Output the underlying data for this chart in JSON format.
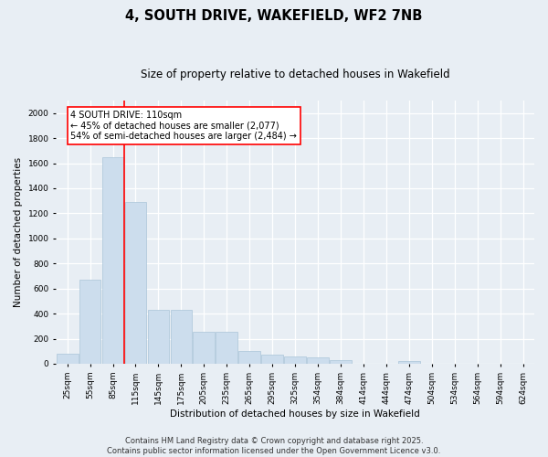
{
  "title": "4, SOUTH DRIVE, WAKEFIELD, WF2 7NB",
  "subtitle": "Size of property relative to detached houses in Wakefield",
  "xlabel": "Distribution of detached houses by size in Wakefield",
  "ylabel": "Number of detached properties",
  "categories": [
    "25sqm",
    "55sqm",
    "85sqm",
    "115sqm",
    "145sqm",
    "175sqm",
    "205sqm",
    "235sqm",
    "265sqm",
    "295sqm",
    "325sqm",
    "354sqm",
    "384sqm",
    "414sqm",
    "444sqm",
    "474sqm",
    "504sqm",
    "534sqm",
    "564sqm",
    "594sqm",
    "624sqm"
  ],
  "values": [
    80,
    670,
    1650,
    1290,
    430,
    430,
    255,
    255,
    100,
    70,
    55,
    50,
    30,
    0,
    0,
    25,
    0,
    0,
    0,
    0,
    0
  ],
  "bar_color": "#ccdded",
  "bar_edgecolor": "#aac4d8",
  "vline_index": 2.5,
  "vline_color": "red",
  "annotation_text": "4 SOUTH DRIVE: 110sqm\n← 45% of detached houses are smaller (2,077)\n54% of semi-detached houses are larger (2,484) →",
  "annotation_box_color": "white",
  "annotation_box_edgecolor": "red",
  "ylim": [
    0,
    2100
  ],
  "yticks": [
    0,
    200,
    400,
    600,
    800,
    1000,
    1200,
    1400,
    1600,
    1800,
    2000
  ],
  "background_color": "#e8eef4",
  "grid_color": "white",
  "footer_text": "Contains HM Land Registry data © Crown copyright and database right 2025.\nContains public sector information licensed under the Open Government Licence v3.0.",
  "title_fontsize": 10.5,
  "subtitle_fontsize": 8.5,
  "label_fontsize": 7.5,
  "tick_fontsize": 6.5,
  "footer_fontsize": 6.0,
  "annot_fontsize": 7.0
}
